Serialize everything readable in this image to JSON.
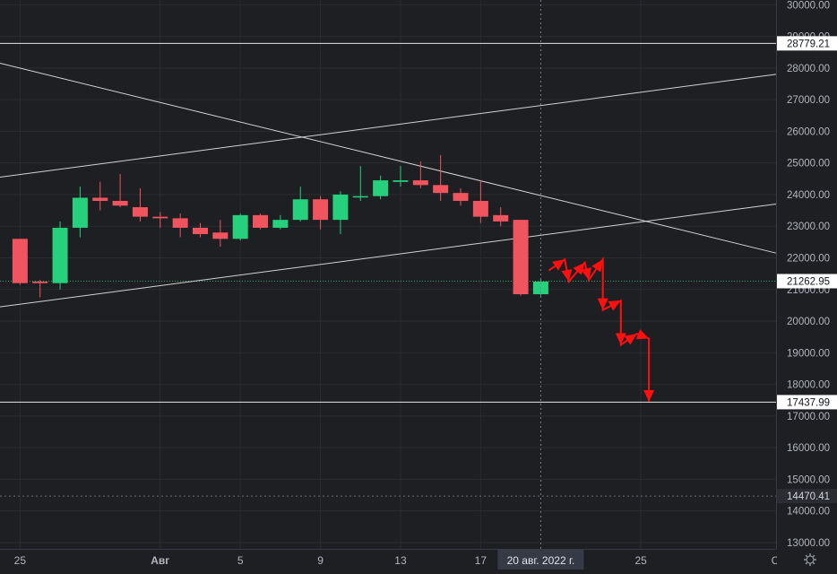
{
  "chart_data": {
    "type": "candlestick",
    "colors": {
      "background": "#1e1f22",
      "up": "#26d07c",
      "down": "#f0555f",
      "grid": "#2a2c31",
      "text": "#b2b5be",
      "line": "#e6e6e6",
      "current_price_line": "#26d07c",
      "arrow": "#ff0f0f",
      "crosshair_label_bg": "#363a45"
    },
    "ylim": [
      12800,
      30150
    ],
    "x_index_range": [
      -1.0,
      37.75
    ],
    "y_ticks": [
      "30000.00",
      "29000.00",
      "28000.00",
      "27000.00",
      "26000.00",
      "25000.00",
      "24000.00",
      "23000.00",
      "22000.00",
      "21000.00",
      "20000.00",
      "19000.00",
      "18000.00",
      "17000.00",
      "16000.00",
      "15000.00",
      "14000.00",
      "13000.00"
    ],
    "x_ticks": [
      {
        "index": 0,
        "label": "25"
      },
      {
        "index": 7,
        "label": "Авг"
      },
      {
        "index": 11,
        "label": "5"
      },
      {
        "index": 15,
        "label": "9"
      },
      {
        "index": 19,
        "label": "13"
      },
      {
        "index": 23,
        "label": "17"
      },
      {
        "index": 31,
        "label": "25"
      },
      {
        "index": 38,
        "label": "Сен"
      }
    ],
    "candles": [
      {
        "i": 0,
        "o": 22600,
        "h": 22600,
        "l": 21150,
        "c": 21200
      },
      {
        "i": 1,
        "o": 21250,
        "h": 21300,
        "l": 20750,
        "c": 21200
      },
      {
        "i": 2,
        "o": 21200,
        "h": 23150,
        "l": 21000,
        "c": 22950
      },
      {
        "i": 3,
        "o": 22950,
        "h": 24250,
        "l": 22650,
        "c": 23900
      },
      {
        "i": 4,
        "o": 23900,
        "h": 24400,
        "l": 23500,
        "c": 23800
      },
      {
        "i": 5,
        "o": 23800,
        "h": 24650,
        "l": 23600,
        "c": 23650
      },
      {
        "i": 6,
        "o": 23600,
        "h": 24200,
        "l": 23150,
        "c": 23300
      },
      {
        "i": 7,
        "o": 23300,
        "h": 23450,
        "l": 22950,
        "c": 23250
      },
      {
        "i": 8,
        "o": 23250,
        "h": 23400,
        "l": 22650,
        "c": 22950
      },
      {
        "i": 9,
        "o": 22950,
        "h": 23100,
        "l": 22650,
        "c": 22750
      },
      {
        "i": 10,
        "o": 22800,
        "h": 23200,
        "l": 22350,
        "c": 22600
      },
      {
        "i": 11,
        "o": 22600,
        "h": 23400,
        "l": 22550,
        "c": 23350
      },
      {
        "i": 12,
        "o": 23350,
        "h": 23400,
        "l": 22900,
        "c": 22950
      },
      {
        "i": 13,
        "o": 22950,
        "h": 23350,
        "l": 22900,
        "c": 23200
      },
      {
        "i": 14,
        "o": 23200,
        "h": 24250,
        "l": 23150,
        "c": 23850
      },
      {
        "i": 15,
        "o": 23850,
        "h": 23950,
        "l": 22900,
        "c": 23200
      },
      {
        "i": 16,
        "o": 23200,
        "h": 24100,
        "l": 22750,
        "c": 24000
      },
      {
        "i": 17,
        "o": 23950,
        "h": 24900,
        "l": 23800,
        "c": 23950
      },
      {
        "i": 18,
        "o": 23950,
        "h": 24600,
        "l": 23850,
        "c": 24450
      },
      {
        "i": 19,
        "o": 24400,
        "h": 24900,
        "l": 24250,
        "c": 24450
      },
      {
        "i": 20,
        "o": 24450,
        "h": 25050,
        "l": 24200,
        "c": 24300
      },
      {
        "i": 21,
        "o": 24300,
        "h": 25250,
        "l": 23800,
        "c": 24050
      },
      {
        "i": 22,
        "o": 24050,
        "h": 24200,
        "l": 23650,
        "c": 23800
      },
      {
        "i": 23,
        "o": 23800,
        "h": 24450,
        "l": 23100,
        "c": 23300
      },
      {
        "i": 24,
        "o": 23350,
        "h": 23600,
        "l": 23000,
        "c": 23150
      },
      {
        "i": 25,
        "o": 23200,
        "h": 23200,
        "l": 20800,
        "c": 20850
      },
      {
        "i": 26,
        "o": 20850,
        "h": 21350,
        "l": 20800,
        "c": 21250
      }
    ],
    "horizontal_lines": [
      {
        "value": 28779.21,
        "label": "28779.21",
        "style": "solid"
      },
      {
        "value": 17437.99,
        "label": "17437.99",
        "style": "solid"
      },
      {
        "value": 14470.41,
        "label": "14470.41",
        "style": "dotted"
      }
    ],
    "current_price": {
      "value": 21262.95,
      "label": "21262.95"
    },
    "trendlines": [
      {
        "x1": -1.0,
        "y1": 28150,
        "x2": 37.75,
        "y2": 22150
      },
      {
        "x1": -1.0,
        "y1": 24550,
        "x2": 37.75,
        "y2": 27800
      },
      {
        "x1": -1.0,
        "y1": 20450,
        "x2": 37.75,
        "y2": 23700
      }
    ],
    "crosshair": {
      "index": 26,
      "label": "20 авг. 2022 г."
    },
    "projection_path": [
      {
        "x": 26.4,
        "y": 21600
      },
      {
        "x": 27.2,
        "y": 21950
      },
      {
        "x": 27.4,
        "y": 21250
      },
      {
        "x": 28.2,
        "y": 21850
      },
      {
        "x": 28.4,
        "y": 21300
      },
      {
        "x": 29.1,
        "y": 21950
      },
      {
        "x": 29.1,
        "y": 20350
      },
      {
        "x": 30.0,
        "y": 20650
      },
      {
        "x": 30.0,
        "y": 19250
      },
      {
        "x": 30.8,
        "y": 19600
      },
      {
        "x": 31.4,
        "y": 19450
      },
      {
        "x": 31.4,
        "y": 17450
      }
    ]
  }
}
